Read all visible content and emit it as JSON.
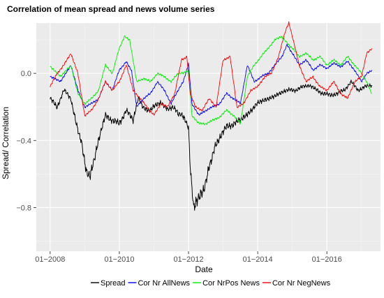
{
  "chart_data": {
    "type": "line",
    "title": "Correlation of mean spread and news volume series",
    "xlabel": "Date",
    "ylabel": "Spread/ Correlation",
    "x_ticks": [
      "01−2008",
      "01−2010",
      "01−2012",
      "01−2014",
      "01−2016"
    ],
    "x_tick_values": [
      2008.0,
      2010.0,
      2012.0,
      2014.0,
      2016.0
    ],
    "xlim": [
      2007.6,
      2017.55
    ],
    "y_ticks": [
      "−0.8",
      "−0.4",
      "0.0"
    ],
    "y_tick_values": [
      -0.8,
      -0.4,
      0.0
    ],
    "ylim": [
      -1.06,
      0.3
    ],
    "grid": true,
    "legend_position": "bottom",
    "series": [
      {
        "name": "Spread",
        "color": "#000000",
        "x": [
          2008.0,
          2008.2,
          2008.4,
          2008.6,
          2008.75,
          2008.9,
          2009.05,
          2009.15,
          2009.3,
          2009.45,
          2009.6,
          2009.8,
          2010.0,
          2010.2,
          2010.4,
          2010.55,
          2010.7,
          2010.85,
          2011.0,
          2011.2,
          2011.4,
          2011.55,
          2011.7,
          2011.8,
          2011.9,
          2012.0,
          2012.05,
          2012.15,
          2012.3,
          2012.45,
          2012.6,
          2012.75,
          2012.9,
          2013.1,
          2013.3,
          2013.5,
          2013.8,
          2014.0,
          2014.3,
          2014.6,
          2014.9,
          2015.1,
          2015.3,
          2015.5,
          2015.7,
          2015.9,
          2016.1,
          2016.3,
          2016.5,
          2016.7,
          2016.9,
          2017.1,
          2017.3
        ],
        "y": [
          -0.15,
          -0.2,
          -0.1,
          -0.15,
          -0.3,
          -0.4,
          -0.58,
          -0.62,
          -0.5,
          -0.35,
          -0.25,
          -0.28,
          -0.3,
          -0.22,
          -0.28,
          -0.15,
          -0.2,
          -0.22,
          -0.2,
          -0.17,
          -0.22,
          -0.2,
          -0.24,
          -0.25,
          -0.28,
          -0.32,
          -0.55,
          -0.8,
          -0.75,
          -0.68,
          -0.55,
          -0.45,
          -0.38,
          -0.32,
          -0.3,
          -0.28,
          -0.22,
          -0.18,
          -0.15,
          -0.12,
          -0.1,
          -0.1,
          -0.08,
          -0.07,
          -0.1,
          -0.12,
          -0.13,
          -0.12,
          -0.1,
          -0.05,
          -0.1,
          -0.08,
          -0.07
        ]
      },
      {
        "name": "Cor Nr AllNews",
        "color": "#0000ff",
        "x": [
          2008.0,
          2008.3,
          2008.6,
          2008.8,
          2009.0,
          2009.2,
          2009.4,
          2009.6,
          2009.8,
          2010.0,
          2010.2,
          2010.35,
          2010.5,
          2010.7,
          2010.9,
          2011.1,
          2011.3,
          2011.5,
          2011.7,
          2011.85,
          2012.0,
          2012.1,
          2012.3,
          2012.5,
          2012.7,
          2012.9,
          2013.1,
          2013.3,
          2013.5,
          2013.7,
          2013.9,
          2014.1,
          2014.3,
          2014.5,
          2014.7,
          2014.85,
          2015.0,
          2015.2,
          2015.4,
          2015.6,
          2015.8,
          2016.0,
          2016.2,
          2016.4,
          2016.6,
          2016.8,
          2017.0,
          2017.15,
          2017.3
        ],
        "y": [
          -0.02,
          -0.05,
          0.05,
          -0.1,
          -0.2,
          -0.18,
          -0.15,
          -0.05,
          -0.1,
          0.02,
          0.07,
          0.02,
          -0.2,
          -0.15,
          -0.12,
          -0.05,
          -0.1,
          -0.18,
          -0.1,
          -0.05,
          0.06,
          -0.18,
          -0.25,
          -0.22,
          -0.2,
          -0.18,
          -0.12,
          -0.15,
          -0.18,
          0.05,
          -0.05,
          -0.02,
          0.0,
          0.05,
          0.1,
          0.17,
          0.12,
          0.05,
          0.08,
          0.02,
          0.05,
          0.03,
          0.06,
          0.04,
          0.07,
          0.02,
          -0.05,
          0.0,
          0.02
        ]
      },
      {
        "name": "Cor NrPos News",
        "color": "#00ee00",
        "x": [
          2008.0,
          2008.3,
          2008.6,
          2008.8,
          2009.0,
          2009.2,
          2009.4,
          2009.6,
          2009.8,
          2010.0,
          2010.15,
          2010.3,
          2010.5,
          2010.7,
          2010.9,
          2011.1,
          2011.3,
          2011.5,
          2011.7,
          2011.85,
          2012.0,
          2012.1,
          2012.3,
          2012.5,
          2012.7,
          2012.9,
          2013.1,
          2013.3,
          2013.5,
          2013.7,
          2013.9,
          2014.1,
          2014.3,
          2014.5,
          2014.7,
          2014.85,
          2015.0,
          2015.2,
          2015.4,
          2015.6,
          2015.8,
          2016.0,
          2016.2,
          2016.4,
          2016.6,
          2016.8,
          2017.0,
          2017.15,
          2017.3
        ],
        "y": [
          0.04,
          -0.02,
          0.05,
          -0.12,
          -0.18,
          -0.15,
          -0.1,
          0.05,
          0.0,
          0.15,
          0.22,
          0.2,
          -0.05,
          -0.03,
          -0.05,
          0.0,
          -0.02,
          -0.05,
          0.0,
          0.0,
          0.02,
          -0.25,
          -0.3,
          -0.3,
          -0.28,
          -0.26,
          -0.22,
          -0.25,
          -0.3,
          -0.02,
          0.05,
          0.1,
          0.15,
          0.2,
          0.22,
          0.18,
          0.15,
          0.1,
          0.12,
          0.08,
          0.1,
          0.05,
          0.08,
          0.05,
          0.1,
          0.05,
          0.0,
          -0.05,
          -0.12
        ]
      },
      {
        "name": "Cor Nr NegNews",
        "color": "#ff0000",
        "x": [
          2008.0,
          2008.2,
          2008.4,
          2008.6,
          2008.8,
          2009.0,
          2009.2,
          2009.4,
          2009.6,
          2009.8,
          2010.0,
          2010.2,
          2010.4,
          2010.6,
          2010.8,
          2011.0,
          2011.2,
          2011.4,
          2011.6,
          2011.8,
          2011.95,
          2012.05,
          2012.2,
          2012.4,
          2012.6,
          2012.8,
          2013.0,
          2013.2,
          2013.4,
          2013.6,
          2013.8,
          2014.0,
          2014.2,
          2014.4,
          2014.6,
          2014.8,
          2014.9,
          2015.0,
          2015.2,
          2015.4,
          2015.6,
          2015.8,
          2016.0,
          2016.2,
          2016.4,
          2016.6,
          2016.8,
          2017.0,
          2017.15,
          2017.3
        ],
        "y": [
          -0.08,
          0.0,
          0.05,
          0.12,
          0.0,
          -0.25,
          -0.22,
          -0.15,
          -0.05,
          -0.1,
          -0.05,
          0.05,
          -0.1,
          -0.15,
          -0.2,
          -0.25,
          -0.18,
          -0.2,
          -0.12,
          0.08,
          0.1,
          -0.12,
          -0.2,
          -0.22,
          -0.15,
          -0.2,
          0.08,
          0.1,
          -0.2,
          -0.18,
          -0.1,
          -0.08,
          -0.02,
          0.0,
          0.1,
          0.25,
          0.3,
          0.22,
          0.05,
          -0.05,
          -0.02,
          -0.08,
          -0.1,
          -0.05,
          -0.12,
          -0.15,
          -0.05,
          -0.02,
          0.12,
          0.15
        ]
      }
    ]
  }
}
